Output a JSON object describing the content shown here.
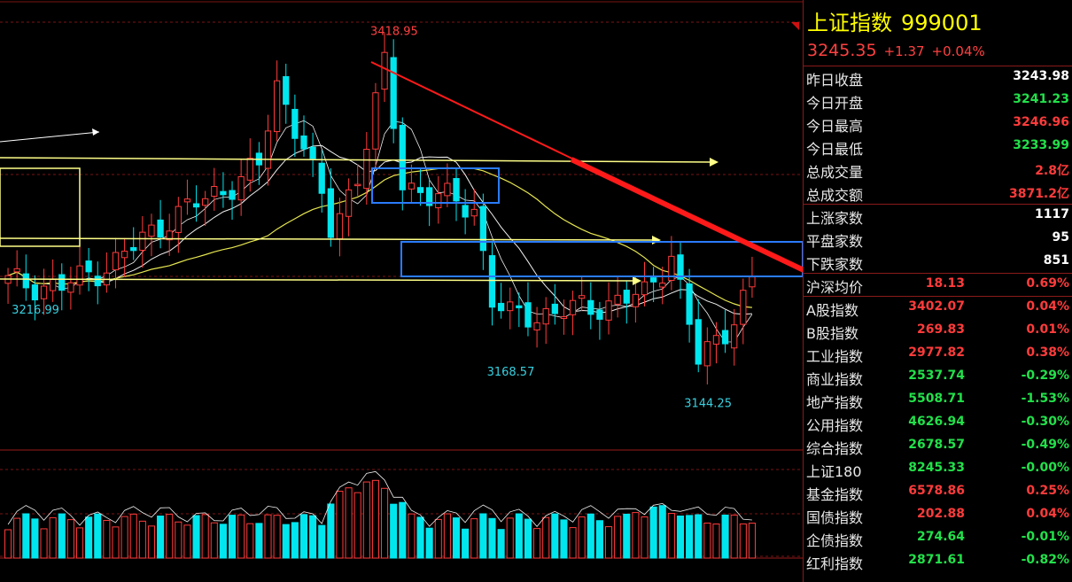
{
  "header": {
    "name": "上证指数",
    "code": "999001",
    "price": "3245.35",
    "change": "+1.37",
    "pct": "+0.04%"
  },
  "quote_rows": [
    {
      "label": "昨日收盘",
      "value": "3243.98",
      "color": "white"
    },
    {
      "label": "今日开盘",
      "value": "3241.23",
      "color": "green"
    },
    {
      "label": "今日最高",
      "value": "3246.96",
      "color": "red"
    },
    {
      "label": "今日最低",
      "value": "3233.99",
      "color": "green"
    },
    {
      "label": "总成交量",
      "value": "2.8亿",
      "color": "red"
    },
    {
      "label": "总成交额",
      "value": "3871.2亿",
      "color": "red"
    }
  ],
  "breadth_rows": [
    {
      "label": "上涨家数",
      "value": "1117",
      "color": "white"
    },
    {
      "label": "平盘家数",
      "value": "95",
      "color": "white"
    },
    {
      "label": "下跌家数",
      "value": "851",
      "color": "white"
    }
  ],
  "spread_row": {
    "label": "沪深均价",
    "v1": "18.13",
    "v2": "0.69%",
    "color": "red"
  },
  "index_rows": [
    {
      "label": "A股指数",
      "v1": "3402.07",
      "v2": "0.04%",
      "color": "red"
    },
    {
      "label": "B股指数",
      "v1": "269.83",
      "v2": "0.01%",
      "color": "red"
    },
    {
      "label": "工业指数",
      "v1": "2977.82",
      "v2": "0.38%",
      "color": "red"
    },
    {
      "label": "商业指数",
      "v1": "2537.74",
      "v2": "-0.29%",
      "color": "green"
    },
    {
      "label": "地产指数",
      "v1": "5508.71",
      "v2": "-1.53%",
      "color": "green"
    },
    {
      "label": "公用指数",
      "v1": "4626.94",
      "v2": "-0.30%",
      "color": "green"
    },
    {
      "label": "综合指数",
      "v1": "2678.57",
      "v2": "-0.49%",
      "color": "green"
    },
    {
      "label": "上证180",
      "v1": "8245.33",
      "v2": "-0.00%",
      "color": "green"
    },
    {
      "label": "基金指数",
      "v1": "6578.86",
      "v2": "0.25%",
      "color": "red"
    },
    {
      "label": "国债指数",
      "v1": "202.88",
      "v2": "0.04%",
      "color": "red"
    },
    {
      "label": "企债指数",
      "v1": "274.64",
      "v2": "-0.01%",
      "color": "green"
    },
    {
      "label": "红利指数",
      "v1": "2871.61",
      "v2": "-0.82%",
      "color": "green"
    }
  ],
  "chart_data": {
    "type": "candlestick",
    "ylim": [
      3110,
      3445
    ],
    "x_count": 84,
    "annotations": [
      {
        "text": "3418.95",
        "x": 42,
        "y": 3418.95,
        "color": "#ff4040"
      },
      {
        "text": "3216.99",
        "x": 1,
        "y": 3216.99,
        "color": "#38d0e0"
      },
      {
        "text": "3168.57",
        "x": 55,
        "y": 3168.57,
        "color": "#38d0e0"
      },
      {
        "text": "3144.25",
        "x": 77,
        "y": 3144.25,
        "color": "#38d0e0"
      }
    ],
    "colors": {
      "up": "#ff3b3b",
      "down": "#00e6ee",
      "ma_white": "#f0f0f0",
      "ma_yellow": "#e6e650",
      "guide": "#ffff88",
      "box": "#2a7cff",
      "arrow": "#ff1a1a"
    }
  }
}
